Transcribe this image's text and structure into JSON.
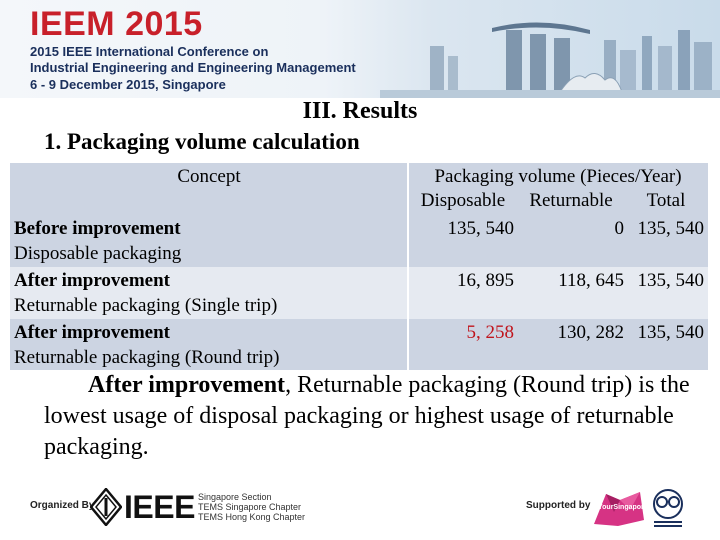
{
  "banner": {
    "title": "IEEM 2015",
    "line1": "2015 IEEE International Conference on",
    "line2": "Industrial Engineering and Engineering Management",
    "line3": "6 - 9 December 2015, Singapore"
  },
  "section_title": "III. Results",
  "sub_title": "1. Packaging volume calculation",
  "table": {
    "concept_header": "Concept",
    "volume_header": "Packaging volume (Pieces/Year)",
    "sub_headers": [
      "Disposable",
      "Returnable",
      "Total"
    ],
    "rows": [
      {
        "label_bold": "Before improvement",
        "label": "Disposable packaging",
        "disposable": "135, 540",
        "returnable": "0",
        "total": "135, 540"
      },
      {
        "label_bold": "After improvement",
        "label": "Returnable packaging (Single trip)",
        "disposable": "16, 895",
        "returnable": "118, 645",
        "total": "135, 540"
      },
      {
        "label_bold": "After improvement",
        "label": "Returnable packaging (Round trip)",
        "disposable": "5, 258",
        "returnable": "130, 282",
        "total": "135, 540"
      }
    ],
    "highlight_color": "#c0141c"
  },
  "conclusion": {
    "bold": "After improvement",
    "text": ", Returnable packaging (Round trip) is the lowest usage of disposal packaging or highest usage of returnable packaging."
  },
  "footer": {
    "organized_by": "Organized By",
    "ieee": "IEEE",
    "chapters": [
      "Singapore Section",
      "TEMS Singapore Chapter",
      "TEMS Hong Kong Chapter"
    ],
    "supported_by": "Supported by",
    "sponsor": "YourSingapore"
  },
  "colors": {
    "brand_red": "#c8202a",
    "brand_navy": "#1a2f5c",
    "row_dark": "#ccd4e2",
    "row_light": "#e6eaf1"
  },
  "icons": [
    "ieee-diamond-icon",
    "singapore-skyline-icon",
    "your-singapore-icon",
    "seal-icon"
  ]
}
